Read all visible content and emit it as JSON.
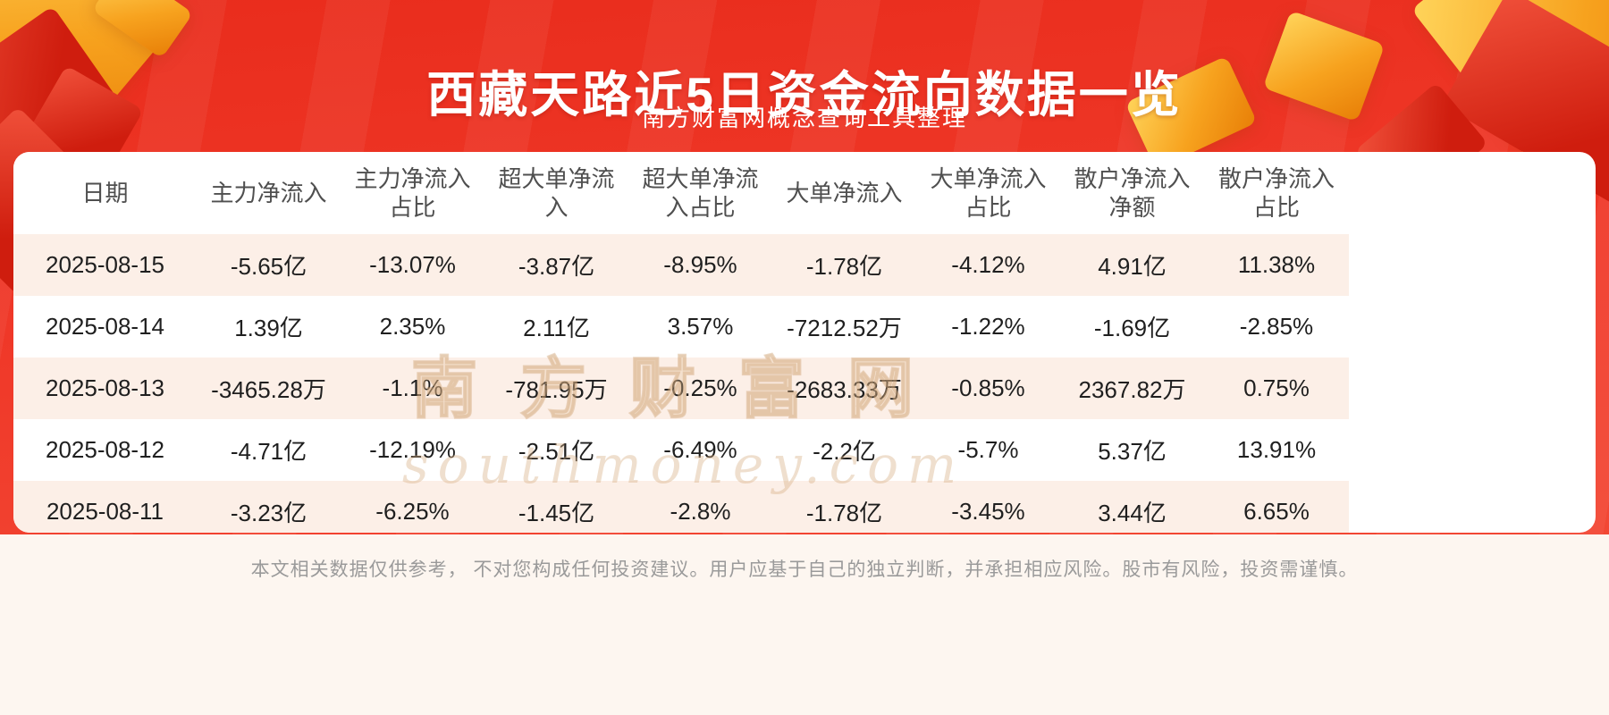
{
  "page": {
    "title": "西藏天路近5日资金流向数据一览",
    "subtitle": "南方财富网概念查询工具整理",
    "disclaimer": "本文相关数据仅供参考， 不对您构成任何投资建议。用户应基于自己的独立判断，并承担相应风险。股市有风险，投资需谨慎。"
  },
  "watermark": {
    "line1": "南方财富网",
    "line2": "southmoney.com"
  },
  "colors": {
    "background_red": "#ee3424",
    "gold_accent": "#f5a623",
    "row_alt_pink": "#fcefe7",
    "cell_text": "#1f1f1f",
    "header_text": "#4f4f4f",
    "footer_text": "#9a9a9a",
    "watermark_tan": "#d9b088"
  },
  "table": {
    "headers": [
      "日期",
      "主力净流入",
      "主力净流入\n占比",
      "超大单净流\n入",
      "超大单净流\n入占比",
      "大单净流入",
      "大单净流入\n占比",
      "散户净流入\n净额",
      "散户净流入\n占比"
    ],
    "rows": [
      [
        "2025-08-15",
        "-5.65亿",
        "-13.07%",
        "-3.87亿",
        "-8.95%",
        "-1.78亿",
        "-4.12%",
        "4.91亿",
        "11.38%"
      ],
      [
        "2025-08-14",
        "1.39亿",
        "2.35%",
        "2.11亿",
        "3.57%",
        "-7212.52万",
        "-1.22%",
        "-1.69亿",
        "-2.85%"
      ],
      [
        "2025-08-13",
        "-3465.28万",
        "-1.1%",
        "-781.95万",
        "-0.25%",
        "-2683.33万",
        "-0.85%",
        "2367.82万",
        "0.75%"
      ],
      [
        "2025-08-12",
        "-4.71亿",
        "-12.19%",
        "-2.51亿",
        "-6.49%",
        "-2.2亿",
        "-5.7%",
        "5.37亿",
        "13.91%"
      ],
      [
        "2025-08-11",
        "-3.23亿",
        "-6.25%",
        "-1.45亿",
        "-2.8%",
        "-1.78亿",
        "-3.45%",
        "3.44亿",
        "6.65%"
      ]
    ]
  },
  "chart_data": {
    "type": "table",
    "title": "西藏天路近5日资金流向数据一览",
    "subtitle": "南方财富网概念查询工具整理",
    "columns": [
      "日期",
      "主力净流入",
      "主力净流入占比",
      "超大单净流入",
      "超大单净流入占比",
      "大单净流入",
      "大单净流入占比",
      "散户净流入净额",
      "散户净流入占比"
    ],
    "rows": [
      [
        "2025-08-15",
        "-5.65亿",
        "-13.07%",
        "-3.87亿",
        "-8.95%",
        "-1.78亿",
        "-4.12%",
        "4.91亿",
        "11.38%"
      ],
      [
        "2025-08-14",
        "1.39亿",
        "2.35%",
        "2.11亿",
        "3.57%",
        "-7212.52万",
        "-1.22%",
        "-1.69亿",
        "-2.85%"
      ],
      [
        "2025-08-13",
        "-3465.28万",
        "-1.1%",
        "-781.95万",
        "-0.25%",
        "-2683.33万",
        "-0.85%",
        "2367.82万",
        "0.75%"
      ],
      [
        "2025-08-12",
        "-4.71亿",
        "-12.19%",
        "-2.51亿",
        "-6.49%",
        "-2.2亿",
        "-5.7%",
        "5.37亿",
        "13.91%"
      ],
      [
        "2025-08-11",
        "-3.23亿",
        "-6.25%",
        "-1.45亿",
        "-2.8%",
        "-1.78亿",
        "-3.45%",
        "3.44亿",
        "6.65%"
      ]
    ]
  }
}
